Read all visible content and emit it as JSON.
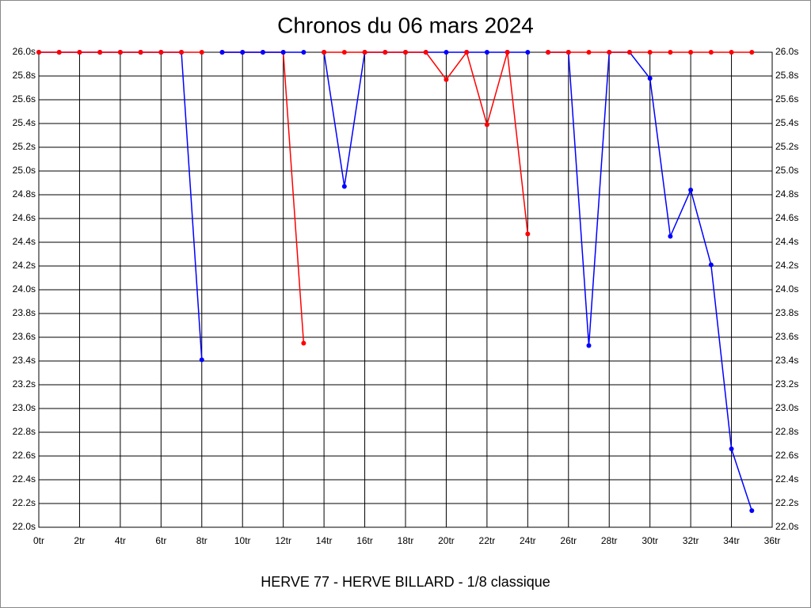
{
  "chart_data": {
    "type": "line",
    "title": "Chronos du 06 mars 2024",
    "x_label": "HERVE 77 - HERVE BILLARD - 1/8 classique",
    "xlim": [
      0,
      36
    ],
    "ylim": [
      22.0,
      26.0
    ],
    "grid": true,
    "xticks": [
      {
        "value": 0,
        "label": "0tr"
      },
      {
        "value": 2,
        "label": "2tr"
      },
      {
        "value": 4,
        "label": "4tr"
      },
      {
        "value": 6,
        "label": "6tr"
      },
      {
        "value": 8,
        "label": "8tr"
      },
      {
        "value": 10,
        "label": "10tr"
      },
      {
        "value": 12,
        "label": "12tr"
      },
      {
        "value": 14,
        "label": "14tr"
      },
      {
        "value": 16,
        "label": "16tr"
      },
      {
        "value": 18,
        "label": "18tr"
      },
      {
        "value": 20,
        "label": "20tr"
      },
      {
        "value": 22,
        "label": "22tr"
      },
      {
        "value": 24,
        "label": "24tr"
      },
      {
        "value": 26,
        "label": "26tr"
      },
      {
        "value": 28,
        "label": "28tr"
      },
      {
        "value": 30,
        "label": "30tr"
      },
      {
        "value": 32,
        "label": "32tr"
      },
      {
        "value": 34,
        "label": "34tr"
      },
      {
        "value": 36,
        "label": "36tr"
      }
    ],
    "yticks": [
      {
        "value": 22.0,
        "label": "22.0s"
      },
      {
        "value": 22.2,
        "label": "22.2s"
      },
      {
        "value": 22.4,
        "label": "22.4s"
      },
      {
        "value": 22.6,
        "label": "22.6s"
      },
      {
        "value": 22.8,
        "label": "22.8s"
      },
      {
        "value": 23.0,
        "label": "23.0s"
      },
      {
        "value": 23.2,
        "label": "23.2s"
      },
      {
        "value": 23.4,
        "label": "23.4s"
      },
      {
        "value": 23.6,
        "label": "23.6s"
      },
      {
        "value": 23.8,
        "label": "23.8s"
      },
      {
        "value": 24.0,
        "label": "24.0s"
      },
      {
        "value": 24.2,
        "label": "24.2s"
      },
      {
        "value": 24.4,
        "label": "24.4s"
      },
      {
        "value": 24.6,
        "label": "24.6s"
      },
      {
        "value": 24.8,
        "label": "24.8s"
      },
      {
        "value": 25.0,
        "label": "25.0s"
      },
      {
        "value": 25.2,
        "label": "25.2s"
      },
      {
        "value": 25.4,
        "label": "25.4s"
      },
      {
        "value": 25.6,
        "label": "25.6s"
      },
      {
        "value": 25.8,
        "label": "25.8s"
      },
      {
        "value": 26.0,
        "label": "26.0s"
      }
    ],
    "series": [
      {
        "color": "#0000ff",
        "x": [
          0,
          1,
          2,
          3,
          4,
          5,
          6,
          7,
          8
        ],
        "values": [
          26,
          26,
          26,
          26,
          26,
          26,
          26,
          26,
          23.41
        ]
      },
      {
        "color": "#ff0000",
        "x": [
          0,
          1,
          2,
          3,
          4,
          5,
          6,
          7,
          8
        ],
        "values": [
          26,
          26,
          26,
          26,
          26,
          26,
          26,
          26,
          26
        ]
      },
      {
        "color": "#ff0000",
        "x": [
          9,
          10,
          11,
          12,
          13
        ],
        "values": [
          26,
          26,
          26,
          26,
          23.55
        ]
      },
      {
        "color": "#0000ff",
        "x": [
          9,
          10,
          11,
          12,
          13
        ],
        "values": [
          26,
          26,
          26,
          26,
          26
        ]
      },
      {
        "color": "#0000ff",
        "x": [
          14,
          15,
          16,
          17,
          18,
          19,
          20,
          21,
          22,
          23,
          24
        ],
        "values": [
          26,
          24.87,
          26,
          26,
          26,
          26,
          26,
          26,
          26,
          26,
          26
        ]
      },
      {
        "color": "#ff0000",
        "x": [
          14,
          15,
          16,
          17,
          18,
          19,
          20,
          21,
          22,
          23,
          24
        ],
        "values": [
          26,
          26,
          26,
          26,
          26,
          26,
          25.77,
          26,
          25.39,
          26,
          24.47
        ]
      },
      {
        "color": "#0000ff",
        "x": [
          25,
          26,
          27,
          28,
          29,
          30,
          31,
          32,
          33,
          34,
          35
        ],
        "values": [
          26,
          26,
          23.53,
          26,
          26,
          25.78,
          24.45,
          24.84,
          24.21,
          22.66,
          22.14
        ]
      },
      {
        "color": "#ff0000",
        "x": [
          25,
          26,
          27,
          28,
          29,
          30,
          31,
          32,
          33,
          34,
          35
        ],
        "values": [
          26,
          26,
          26,
          26,
          26,
          26,
          26,
          26,
          26,
          26,
          26
        ]
      }
    ]
  }
}
